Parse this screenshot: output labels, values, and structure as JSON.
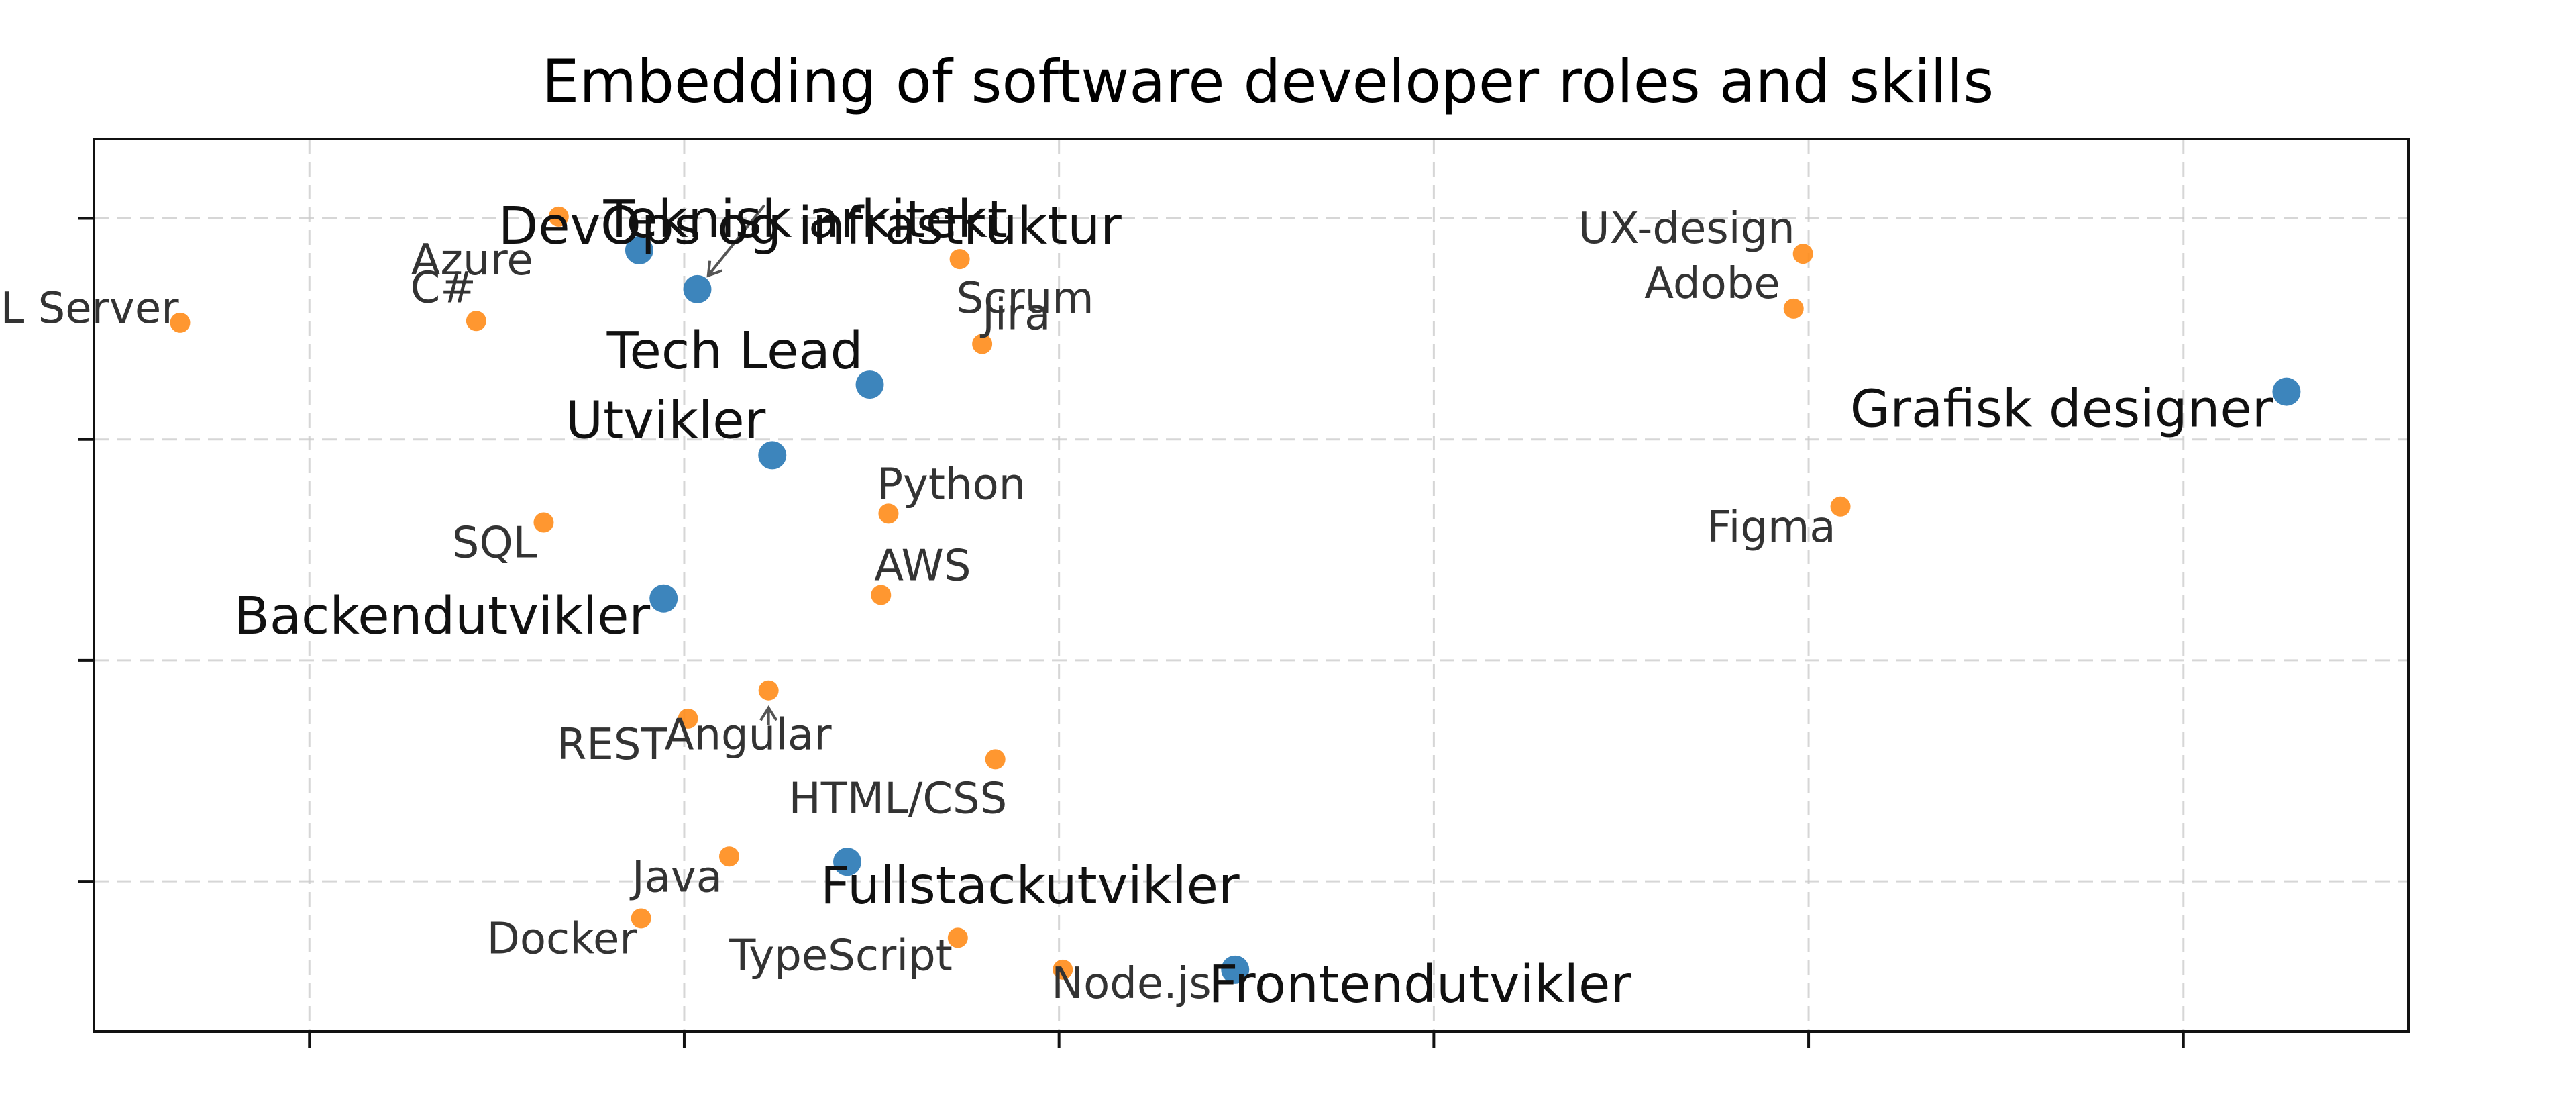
{
  "chart_data": {
    "type": "scatter",
    "title": "Embedding of software developer roles and skills",
    "xlabel": "",
    "ylabel": "",
    "xlim": [
      -3.15,
      9.2
    ],
    "ylim": [
      -1.35,
      3.7
    ],
    "x_ticks": [
      -2,
      0,
      2,
      4,
      6,
      8
    ],
    "y_ticks": [
      -0.5,
      0.75,
      2.0,
      3.25
    ],
    "tick_labels_shown": false,
    "grid": true,
    "colors": {
      "role": "#2878b5",
      "skill": "#ff8c1a"
    },
    "series": [
      {
        "name": "roles",
        "points": [
          {
            "label": "DevOps og infrastruktur",
            "x": -0.24,
            "y": 3.07
          },
          {
            "label": "Teknisk arkitekt",
            "x": 0.07,
            "y": 2.85
          },
          {
            "label": "Tech Lead",
            "x": 0.99,
            "y": 2.31
          },
          {
            "label": "Utvikler",
            "x": 0.47,
            "y": 1.91
          },
          {
            "label": "Grafisk designer",
            "x": 8.55,
            "y": 2.27
          },
          {
            "label": "Backendutvikler",
            "x": -0.11,
            "y": 1.1
          },
          {
            "label": "Fullstackutvikler",
            "x": 0.87,
            "y": -0.39
          },
          {
            "label": "Frontendutvikler",
            "x": 2.94,
            "y": -1.0
          }
        ]
      },
      {
        "name": "skills",
        "points": [
          {
            "label": "Azure",
            "x": -0.67,
            "y": 3.26
          },
          {
            "label": "SQL Server",
            "x": -2.69,
            "y": 2.66
          },
          {
            "label": "C#",
            "x": -1.11,
            "y": 2.67
          },
          {
            "label": "Scrum",
            "x": 1.47,
            "y": 3.02
          },
          {
            "label": "Jira",
            "x": 1.59,
            "y": 2.54
          },
          {
            "label": "UX-design",
            "x": 5.97,
            "y": 3.05
          },
          {
            "label": "Adobe",
            "x": 5.92,
            "y": 2.74
          },
          {
            "label": "Figma",
            "x": 6.17,
            "y": 1.62
          },
          {
            "label": "Python",
            "x": 1.09,
            "y": 1.58
          },
          {
            "label": "SQL",
            "x": -0.75,
            "y": 1.53
          },
          {
            "label": "AWS",
            "x": 1.05,
            "y": 1.12
          },
          {
            "label": "Angular",
            "x": 0.45,
            "y": 0.58
          },
          {
            "label": "REST",
            "x": 0.02,
            "y": 0.42
          },
          {
            "label": "HTML/CSS",
            "x": 1.66,
            "y": 0.19
          },
          {
            "label": "Java",
            "x": 0.24,
            "y": -0.36
          },
          {
            "label": "Docker",
            "x": -0.23,
            "y": -0.71
          },
          {
            "label": "TypeScript",
            "x": 1.46,
            "y": -0.82
          },
          {
            "label": "Node.js",
            "x": 2.02,
            "y": -1.0
          }
        ]
      }
    ]
  }
}
